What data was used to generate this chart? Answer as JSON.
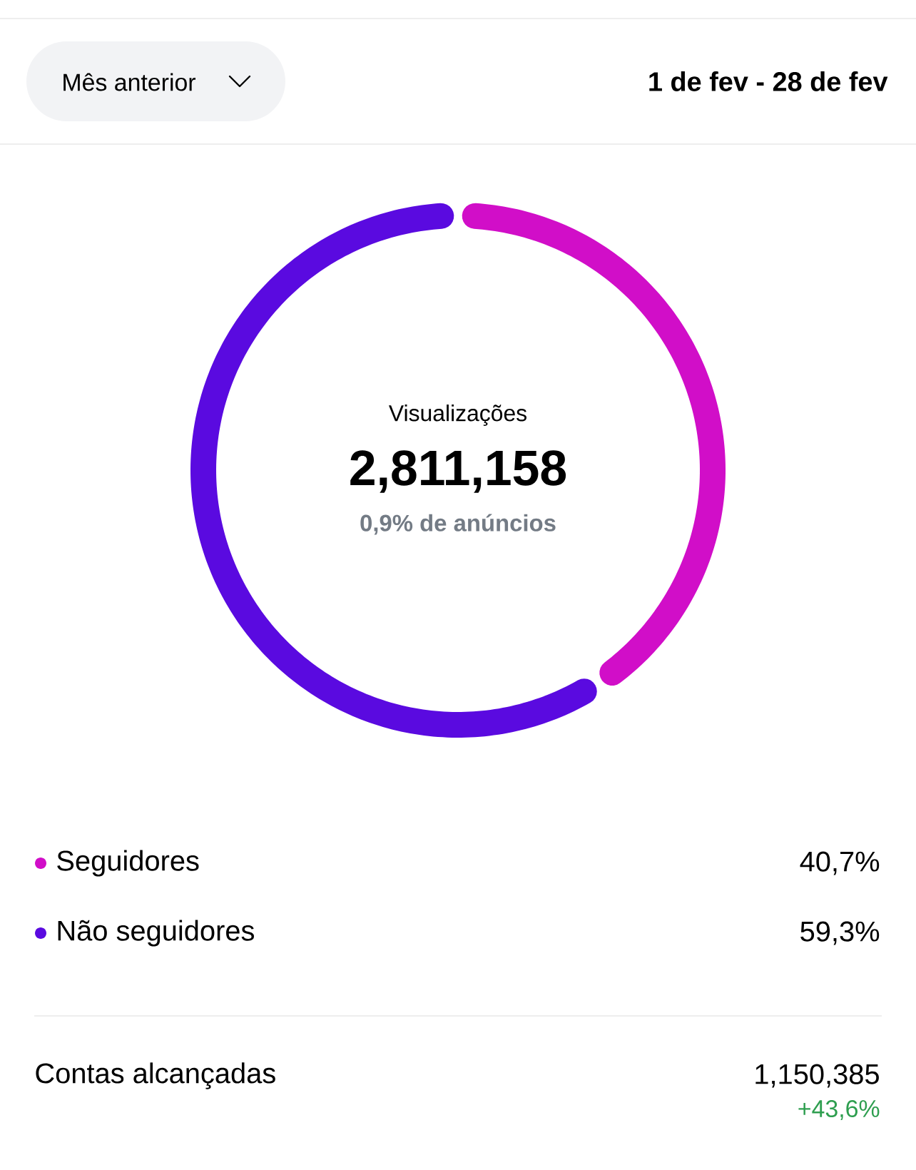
{
  "chart_data": {
    "type": "donut",
    "title": "Visualizações",
    "subtitle": "1 de fev - 28 de fev",
    "categories": [
      "Seguidores",
      "Não seguidores"
    ],
    "values": [
      40.7,
      59.3
    ],
    "colors": [
      "#d10ec8",
      "#5a0ae0"
    ],
    "value_labels": [
      "40,7%",
      "59,3%"
    ],
    "legend": "bottom",
    "annotations": [
      "Mês anterior",
      "2,811,158",
      "0,9% de anúncios",
      "Contas alcançadas",
      "1,150,385",
      "+43,6%"
    ]
  }
}
